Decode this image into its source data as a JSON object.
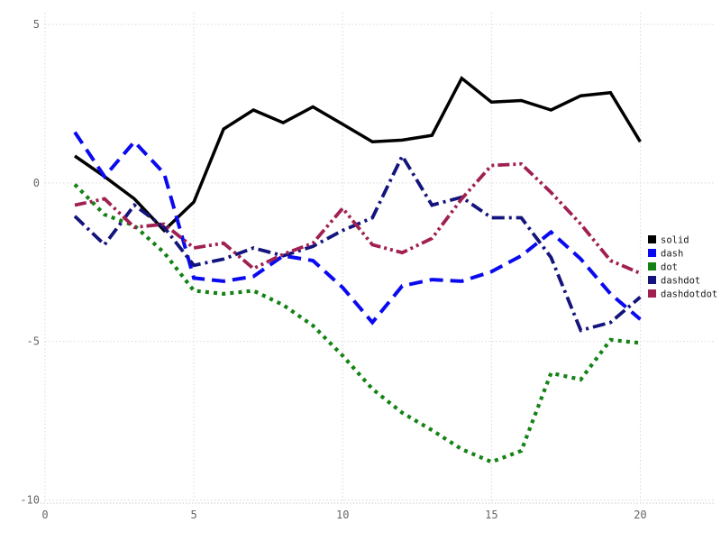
{
  "chart_data": {
    "type": "line",
    "title": "",
    "xlabel": "",
    "ylabel": "",
    "xlim": [
      0,
      22.5
    ],
    "ylim": [
      -10.1,
      5.4
    ],
    "xticks": [
      0,
      5,
      10,
      15,
      20
    ],
    "yticks": [
      -10,
      -5,
      0,
      5
    ],
    "grid": true,
    "x": [
      1,
      2,
      3,
      4,
      5,
      6,
      7,
      8,
      9,
      10,
      11,
      12,
      13,
      14,
      15,
      16,
      17,
      18,
      19,
      20
    ],
    "series": [
      {
        "name": "solid",
        "style": "solid",
        "color": "#000000",
        "values": [
          0.85,
          0.2,
          -0.5,
          -1.5,
          -0.6,
          1.7,
          2.3,
          1.9,
          2.4,
          1.85,
          1.3,
          1.35,
          1.5,
          3.3,
          2.55,
          2.6,
          2.3,
          2.75,
          2.85,
          1.3
        ]
      },
      {
        "name": "dash",
        "style": "dash",
        "color": "#0a0af0",
        "values": [
          1.6,
          0.2,
          1.3,
          0.3,
          -3.0,
          -3.1,
          -2.95,
          -2.3,
          -2.45,
          -3.3,
          -4.4,
          -3.25,
          -3.05,
          -3.1,
          -2.8,
          -2.3,
          -1.55,
          -2.4,
          -3.5,
          -4.3
        ]
      },
      {
        "name": "dot",
        "style": "dot",
        "color": "#148214",
        "values": [
          -0.05,
          -1.0,
          -1.35,
          -2.2,
          -3.4,
          -3.5,
          -3.4,
          -3.85,
          -4.5,
          -5.45,
          -6.5,
          -7.25,
          -7.8,
          -8.4,
          -8.8,
          -8.45,
          -6.0,
          -6.2,
          -4.95,
          -5.05
        ]
      },
      {
        "name": "dashdot",
        "style": "dashdot",
        "color": "#14147d",
        "values": [
          -1.05,
          -1.95,
          -0.7,
          -1.4,
          -2.6,
          -2.4,
          -2.05,
          -2.3,
          -2.0,
          -1.5,
          -1.1,
          0.85,
          -0.7,
          -0.45,
          -1.1,
          -1.1,
          -2.35,
          -4.65,
          -4.4,
          -3.6
        ]
      },
      {
        "name": "dashdotdot",
        "style": "dashdotdot",
        "color": "#a02052",
        "values": [
          -0.7,
          -0.5,
          -1.4,
          -1.3,
          -2.05,
          -1.9,
          -2.7,
          -2.25,
          -1.9,
          -0.8,
          -1.95,
          -2.2,
          -1.75,
          -0.5,
          0.55,
          0.6,
          -0.3,
          -1.3,
          -2.45,
          -2.85
        ]
      }
    ],
    "legend": {
      "position": "right",
      "entries": [
        "solid",
        "dash",
        "dot",
        "dashdot",
        "dashdotdot"
      ]
    }
  },
  "axis": {
    "tick_color": "#666666",
    "grid_color": "#d9d9dd"
  }
}
